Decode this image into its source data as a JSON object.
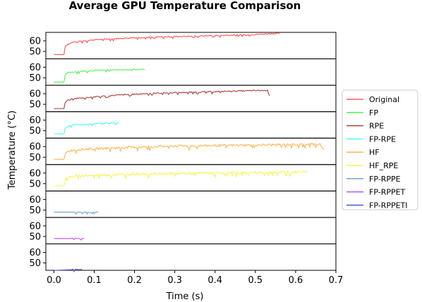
{
  "chart_data": {
    "type": "line",
    "title": "Average GPU Temperature Comparison",
    "xlabel": "Time (s)",
    "ylabel": "Temperature (°C)",
    "xlim": [
      -0.02,
      0.7
    ],
    "xticks": [
      0.0,
      0.1,
      0.2,
      0.3,
      0.4,
      0.5,
      0.6,
      0.7
    ],
    "xtick_labels": [
      "0.0",
      "0.1",
      "0.2",
      "0.3",
      "0.4",
      "0.5",
      "0.6",
      "0.7"
    ],
    "ylim": [
      43,
      68
    ],
    "yticks": [
      50,
      60
    ],
    "ytick_labels": [
      "50",
      "60"
    ],
    "grid": false,
    "legend_position": "right",
    "series": [
      {
        "name": "Original",
        "color": "#ff5c5c",
        "x": [
          0.0,
          0.025,
          0.028,
          0.035,
          0.05,
          0.1,
          0.15,
          0.2,
          0.25,
          0.3,
          0.35,
          0.4,
          0.45,
          0.5,
          0.55,
          0.56
        ],
        "y": [
          47,
          47,
          55,
          57,
          59,
          61,
          62,
          63,
          63.5,
          64,
          64.5,
          65,
          65.5,
          66,
          67,
          67
        ]
      },
      {
        "name": "FP",
        "color": "#5cf55c",
        "x": [
          0.0,
          0.025,
          0.028,
          0.035,
          0.06,
          0.1,
          0.15,
          0.2,
          0.225
        ],
        "y": [
          46,
          46,
          53,
          55,
          56,
          57,
          57.5,
          58,
          58
        ]
      },
      {
        "name": "RPE",
        "color": "#b34a4a",
        "x": [
          0.0,
          0.025,
          0.028,
          0.04,
          0.1,
          0.15,
          0.2,
          0.25,
          0.3,
          0.35,
          0.4,
          0.45,
          0.5,
          0.53,
          0.535
        ],
        "y": [
          46,
          46,
          52,
          55,
          57,
          58.5,
          59.5,
          60.5,
          61,
          61.5,
          62,
          62.5,
          63,
          63,
          58
        ]
      },
      {
        "name": "FP-RPE",
        "color": "#5cf5f5",
        "x": [
          0.0,
          0.025,
          0.028,
          0.04,
          0.08,
          0.12,
          0.16
        ],
        "y": [
          47,
          47,
          53,
          55,
          56,
          57,
          57.5
        ]
      },
      {
        "name": "HF",
        "color": "#ffb85c",
        "x": [
          0.0,
          0.025,
          0.03,
          0.05,
          0.1,
          0.2,
          0.3,
          0.4,
          0.5,
          0.6,
          0.66,
          0.67
        ],
        "y": [
          48,
          48,
          55,
          57,
          58,
          59.5,
          60.5,
          61,
          61.5,
          62,
          62.5,
          57
        ]
      },
      {
        "name": "HF_RPE",
        "color": "#f5f55c",
        "x": [
          0.0,
          0.025,
          0.03,
          0.05,
          0.1,
          0.2,
          0.3,
          0.4,
          0.5,
          0.6,
          0.63
        ],
        "y": [
          48,
          48,
          55,
          57,
          58,
          59,
          59.5,
          60,
          60.5,
          61,
          61.5
        ]
      },
      {
        "name": "FP-RPPE",
        "color": "#80a8cc",
        "x": [
          0.0,
          0.05,
          0.1,
          0.11
        ],
        "y": [
          48,
          48,
          48,
          48
        ]
      },
      {
        "name": "FP-RPPET",
        "color": "#c45cf5",
        "x": [
          0.0,
          0.04,
          0.075
        ],
        "y": [
          48,
          48,
          48
        ]
      },
      {
        "name": "FP-RPPETI",
        "color": "#5c5cd6",
        "x": [
          0.0,
          0.04,
          0.07
        ],
        "y": [
          43,
          43.5,
          44
        ]
      }
    ]
  }
}
